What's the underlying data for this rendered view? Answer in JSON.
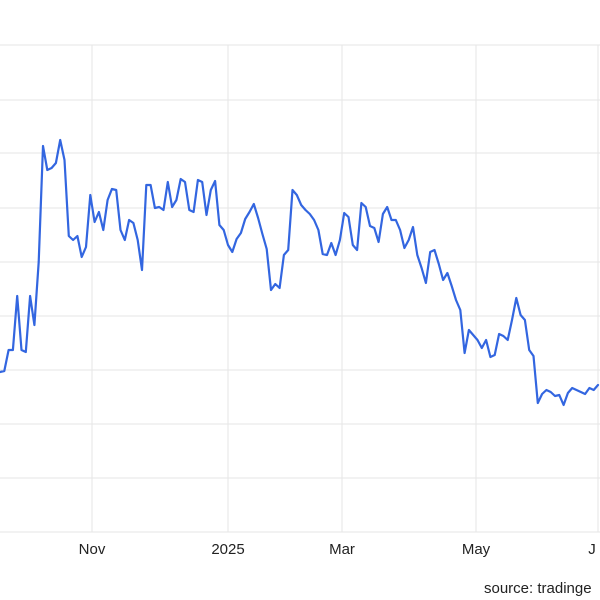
{
  "chart_data": {
    "type": "line",
    "x_tick_labels": [
      "Nov",
      "2025",
      "Mar",
      "May",
      "J"
    ],
    "source": "source: tradinge",
    "grid": true,
    "series_color": "#3366e0",
    "y": [
      372,
      371,
      350,
      350,
      296,
      350,
      352,
      296,
      325,
      262,
      146,
      170,
      168,
      163,
      140,
      160,
      236,
      240,
      236,
      257,
      247,
      195,
      222,
      212,
      230,
      200,
      189,
      190,
      230,
      240,
      220,
      223,
      240,
      270,
      185,
      185,
      208,
      207,
      210,
      182,
      207,
      200,
      179,
      182,
      210,
      212,
      180,
      182,
      215,
      190,
      181,
      225,
      230,
      245,
      252,
      239,
      233,
      219,
      212,
      204,
      218,
      234,
      249,
      290,
      284,
      288,
      255,
      250,
      190,
      195,
      205,
      210,
      214,
      220,
      230,
      254,
      255,
      243,
      255,
      240,
      213,
      217,
      245,
      250,
      203,
      207,
      226,
      228,
      242,
      214,
      207,
      220,
      220,
      230,
      248,
      240,
      227,
      255,
      268,
      283,
      252,
      250,
      264,
      280,
      273,
      286,
      300,
      310,
      353,
      330,
      335,
      340,
      348,
      340,
      357,
      355,
      334,
      336,
      340,
      320,
      298,
      315,
      320,
      350,
      356,
      403,
      394,
      390,
      392,
      396,
      395,
      405,
      393,
      388,
      390,
      392,
      394,
      388,
      390,
      385
    ]
  }
}
